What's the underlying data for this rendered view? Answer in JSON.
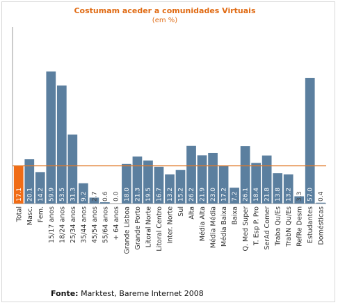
{
  "chart_data": {
    "type": "bar",
    "title": "Costumam aceder a comunidades Virtuais",
    "subtitle": "(em %)",
    "categories": [
      "Total",
      "Masc.",
      "Fem.",
      "15/17 anos",
      "18/24 anos",
      "25/34 anos",
      "35/44 anos",
      "45/54 anos",
      "55/64 anos",
      "+ 64 anos",
      "Grande Lisboa",
      "Grande Porto",
      "Litoral Norte",
      "Litoral Centro",
      "Inter. Norte",
      "Sul",
      "Alta",
      "Média Alta",
      "Média Média",
      "Média Baixa",
      "Baixa",
      "Q. Med Super",
      "T. Esp P. Pro",
      "SerAd Comer",
      "Traba Qu/Es",
      "TrabN Qu/Es",
      "RefRe Desm",
      "Estudantes",
      "Domésticas"
    ],
    "values": [
      17.1,
      20.1,
      14.2,
      59.9,
      53.5,
      31.3,
      9.2,
      2.7,
      0.6,
      0.0,
      18.0,
      21.3,
      19.5,
      16.7,
      13.2,
      15.2,
      26.2,
      21.9,
      23.0,
      17.2,
      7.2,
      26.1,
      18.4,
      21.8,
      13.8,
      13.2,
      3.3,
      57.0,
      0.4
    ],
    "value_labels": [
      "17.1",
      "20.1",
      "14.2",
      "59.9",
      "53.5",
      "31.3",
      "9.2",
      "2.7",
      "0.6",
      "0.0",
      "18.0",
      "21.3",
      "19.5",
      "16.7",
      "13.2",
      "15.2",
      "26.2",
      "21.9",
      "23.0",
      "17.2",
      "7.2",
      "26.1",
      "18.4",
      "21.8",
      "13.8",
      "13.2",
      "3.3",
      "57.0",
      "0.4"
    ],
    "reference_line": 17.1,
    "ylim": [
      0,
      80
    ],
    "colors": {
      "bar": "#5b7f9f",
      "highlight": "#f06c16",
      "reference_line": "#e07a2a",
      "axis": "#999999"
    }
  },
  "source": {
    "label": "Fonte:",
    "text": " Marktest, Bareme Internet 2008"
  }
}
